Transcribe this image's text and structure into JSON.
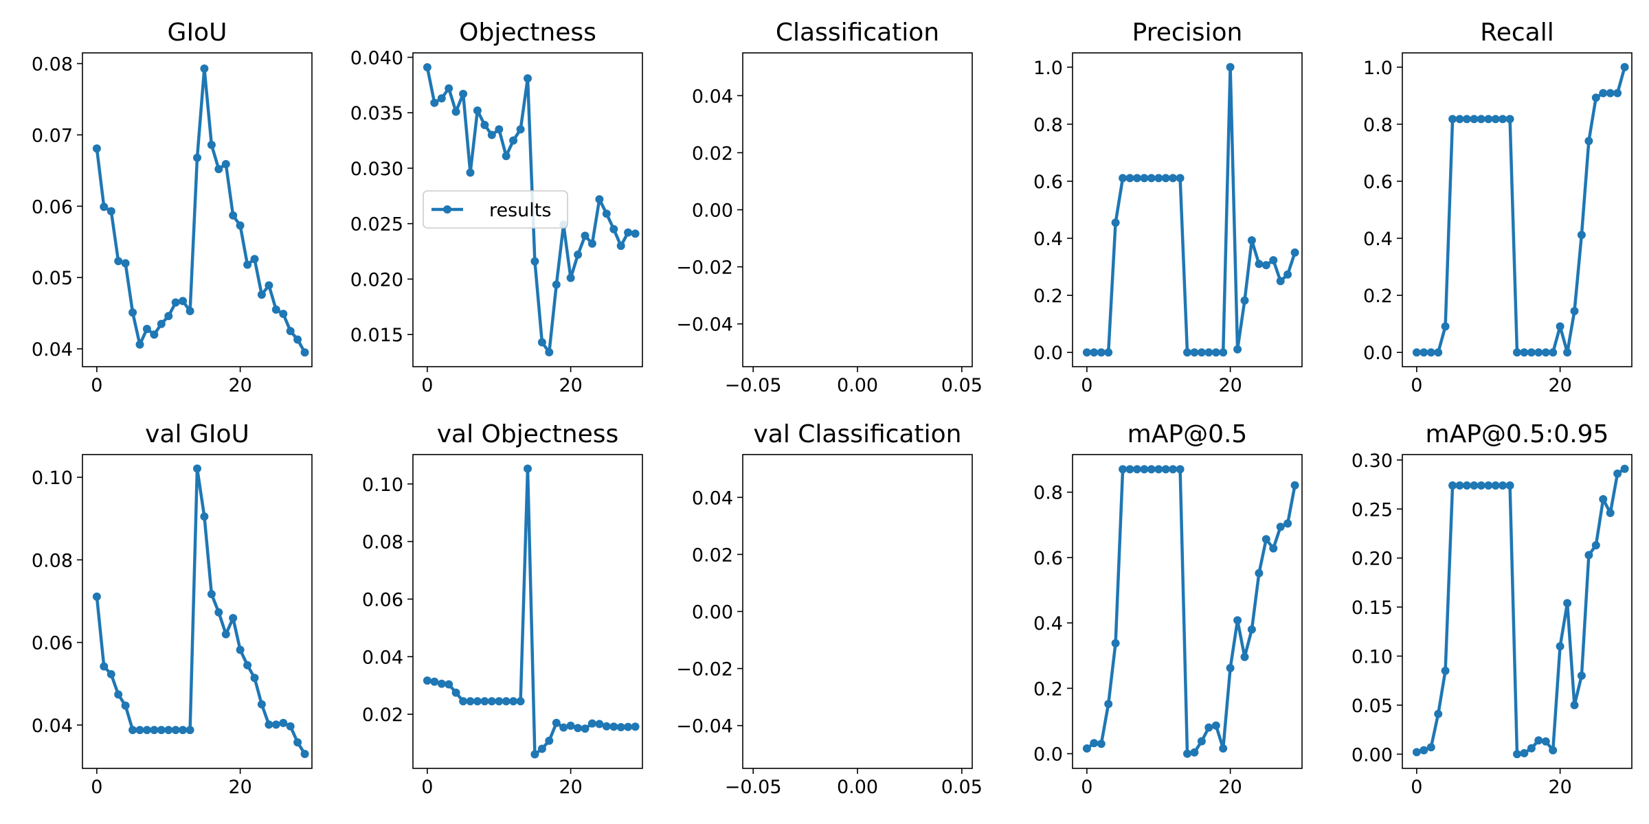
{
  "colors": {
    "series": "#1f77b4",
    "axes": "#000000",
    "background": "#ffffff"
  },
  "chart_data": [
    {
      "type": "line",
      "title": "GIoU",
      "xlim": [
        -2,
        30
      ],
      "ylim": [
        0.0375,
        0.0815
      ],
      "grid": false,
      "xticks": [
        {
          "value": 0,
          "label": "0"
        },
        {
          "value": 20,
          "label": "20"
        }
      ],
      "yticks": [
        {
          "value": 0.04,
          "label": "0.04"
        },
        {
          "value": 0.05,
          "label": "0.05"
        },
        {
          "value": 0.06,
          "label": "0.06"
        },
        {
          "value": 0.07,
          "label": "0.07"
        },
        {
          "value": 0.08,
          "label": "0.08"
        }
      ],
      "series": [
        {
          "x": [
            0,
            1,
            2,
            3,
            4,
            5,
            6,
            7,
            8,
            9,
            10,
            11,
            12,
            13,
            14,
            15,
            16,
            17,
            18,
            19,
            20,
            21,
            22,
            23,
            24,
            25,
            26,
            27,
            28,
            29
          ],
          "y": [
            0.0681,
            0.0599,
            0.0593,
            0.0523,
            0.052,
            0.0451,
            0.0406,
            0.0428,
            0.042,
            0.0435,
            0.0446,
            0.0465,
            0.0467,
            0.0453,
            0.0668,
            0.0793,
            0.0686,
            0.0652,
            0.0659,
            0.0587,
            0.0573,
            0.0518,
            0.0526,
            0.0476,
            0.0489,
            0.0455,
            0.0449,
            0.0425,
            0.0413,
            0.0395
          ]
        }
      ]
    },
    {
      "type": "line",
      "title": "Objectness",
      "xlim": [
        -2,
        30
      ],
      "ylim": [
        0.0121,
        0.0404
      ],
      "grid": false,
      "legend": {
        "entries": [
          "results"
        ],
        "position": "center-left"
      },
      "xticks": [
        {
          "value": 0,
          "label": "0"
        },
        {
          "value": 20,
          "label": "20"
        }
      ],
      "yticks": [
        {
          "value": 0.015,
          "label": "0.015"
        },
        {
          "value": 0.02,
          "label": "0.020"
        },
        {
          "value": 0.025,
          "label": "0.025"
        },
        {
          "value": 0.03,
          "label": "0.030"
        },
        {
          "value": 0.035,
          "label": "0.035"
        },
        {
          "value": 0.04,
          "label": "0.040"
        }
      ],
      "series": [
        {
          "name": "results",
          "x": [
            0,
            1,
            2,
            3,
            4,
            5,
            6,
            7,
            8,
            9,
            10,
            11,
            12,
            13,
            14,
            15,
            16,
            17,
            18,
            19,
            20,
            21,
            22,
            23,
            24,
            25,
            26,
            27,
            28,
            29
          ],
          "y": [
            0.0391,
            0.0359,
            0.0363,
            0.0372,
            0.0351,
            0.0367,
            0.0296,
            0.0352,
            0.0339,
            0.033,
            0.0335,
            0.0311,
            0.0325,
            0.0335,
            0.0381,
            0.0216,
            0.0143,
            0.0134,
            0.0195,
            0.0249,
            0.0201,
            0.0222,
            0.0239,
            0.0232,
            0.0272,
            0.0259,
            0.0245,
            0.023,
            0.0242,
            0.0241
          ]
        }
      ]
    },
    {
      "type": "line",
      "title": "Classification",
      "xlim": [
        -0.055,
        0.055
      ],
      "ylim": [
        -0.055,
        0.055
      ],
      "grid": false,
      "xticks": [
        {
          "value": -0.05,
          "label": "−0.05"
        },
        {
          "value": 0,
          "label": "0.00"
        },
        {
          "value": 0.05,
          "label": "0.05"
        }
      ],
      "yticks": [
        {
          "value": -0.04,
          "label": "−0.04"
        },
        {
          "value": -0.02,
          "label": "−0.02"
        },
        {
          "value": 0,
          "label": "0.00"
        },
        {
          "value": 0.02,
          "label": "0.02"
        },
        {
          "value": 0.04,
          "label": "0.04"
        }
      ],
      "series": [
        {
          "x": [],
          "y": []
        }
      ]
    },
    {
      "type": "line",
      "title": "Precision",
      "xlim": [
        -2,
        30
      ],
      "ylim": [
        -0.05,
        1.05
      ],
      "grid": false,
      "xticks": [
        {
          "value": 0,
          "label": "0"
        },
        {
          "value": 20,
          "label": "20"
        }
      ],
      "yticks": [
        {
          "value": 0,
          "label": "0.0"
        },
        {
          "value": 0.2,
          "label": "0.2"
        },
        {
          "value": 0.4,
          "label": "0.4"
        },
        {
          "value": 0.6,
          "label": "0.6"
        },
        {
          "value": 0.8,
          "label": "0.8"
        },
        {
          "value": 1.0,
          "label": "1.0"
        }
      ],
      "series": [
        {
          "x": [
            0,
            1,
            2,
            3,
            4,
            5,
            6,
            7,
            8,
            9,
            10,
            11,
            12,
            13,
            14,
            15,
            16,
            17,
            18,
            19,
            20,
            21,
            22,
            23,
            24,
            25,
            26,
            27,
            28,
            29
          ],
          "y": [
            0,
            0,
            0,
            0,
            0.455,
            0.611,
            0.611,
            0.611,
            0.611,
            0.611,
            0.611,
            0.611,
            0.611,
            0.611,
            0,
            0,
            0,
            0,
            0,
            0,
            1.0,
            0.011,
            0.182,
            0.393,
            0.31,
            0.306,
            0.323,
            0.25,
            0.273,
            0.35
          ]
        }
      ]
    },
    {
      "type": "line",
      "title": "Recall",
      "xlim": [
        -2,
        30
      ],
      "ylim": [
        -0.05,
        1.05
      ],
      "grid": false,
      "xticks": [
        {
          "value": 0,
          "label": "0"
        },
        {
          "value": 20,
          "label": "20"
        }
      ],
      "yticks": [
        {
          "value": 0,
          "label": "0.0"
        },
        {
          "value": 0.2,
          "label": "0.2"
        },
        {
          "value": 0.4,
          "label": "0.4"
        },
        {
          "value": 0.6,
          "label": "0.6"
        },
        {
          "value": 0.8,
          "label": "0.8"
        },
        {
          "value": 1.0,
          "label": "1.0"
        }
      ],
      "series": [
        {
          "x": [
            0,
            1,
            2,
            3,
            4,
            5,
            6,
            7,
            8,
            9,
            10,
            11,
            12,
            13,
            14,
            15,
            16,
            17,
            18,
            19,
            20,
            21,
            22,
            23,
            24,
            25,
            26,
            27,
            28,
            29
          ],
          "y": [
            0,
            0,
            0,
            0,
            0.091,
            0.818,
            0.818,
            0.818,
            0.818,
            0.818,
            0.818,
            0.818,
            0.818,
            0.818,
            0,
            0,
            0,
            0,
            0,
            0,
            0.091,
            0,
            0.145,
            0.412,
            0.741,
            0.893,
            0.909,
            0.909,
            0.909,
            1.0
          ]
        }
      ]
    },
    {
      "type": "line",
      "title": "val GIoU",
      "xlim": [
        -2,
        30
      ],
      "ylim": [
        0.0295,
        0.1055
      ],
      "grid": false,
      "xticks": [
        {
          "value": 0,
          "label": "0"
        },
        {
          "value": 20,
          "label": "20"
        }
      ],
      "yticks": [
        {
          "value": 0.04,
          "label": "0.04"
        },
        {
          "value": 0.06,
          "label": "0.06"
        },
        {
          "value": 0.08,
          "label": "0.08"
        },
        {
          "value": 0.1,
          "label": "0.10"
        }
      ],
      "series": [
        {
          "x": [
            0,
            1,
            2,
            3,
            4,
            5,
            6,
            7,
            8,
            9,
            10,
            11,
            12,
            13,
            14,
            15,
            16,
            17,
            18,
            19,
            20,
            21,
            22,
            23,
            24,
            25,
            26,
            27,
            28,
            29
          ],
          "y": [
            0.0711,
            0.0542,
            0.0523,
            0.0474,
            0.0447,
            0.0388,
            0.0388,
            0.0388,
            0.0388,
            0.0388,
            0.0388,
            0.0388,
            0.0388,
            0.0388,
            0.1021,
            0.0905,
            0.0717,
            0.0673,
            0.062,
            0.0659,
            0.0582,
            0.0545,
            0.0514,
            0.045,
            0.0401,
            0.0401,
            0.0405,
            0.0397,
            0.0358,
            0.033
          ]
        }
      ]
    },
    {
      "type": "line",
      "title": "val Objectness",
      "xlim": [
        -2,
        30
      ],
      "ylim": [
        0.0012,
        0.1102
      ],
      "grid": false,
      "xticks": [
        {
          "value": 0,
          "label": "0"
        },
        {
          "value": 20,
          "label": "20"
        }
      ],
      "yticks": [
        {
          "value": 0.02,
          "label": "0.02"
        },
        {
          "value": 0.04,
          "label": "0.04"
        },
        {
          "value": 0.06,
          "label": "0.06"
        },
        {
          "value": 0.08,
          "label": "0.08"
        },
        {
          "value": 0.1,
          "label": "0.10"
        }
      ],
      "series": [
        {
          "x": [
            0,
            1,
            2,
            3,
            4,
            5,
            6,
            7,
            8,
            9,
            10,
            11,
            12,
            13,
            14,
            15,
            16,
            17,
            18,
            19,
            20,
            21,
            22,
            23,
            24,
            25,
            26,
            27,
            28,
            29
          ],
          "y": [
            0.0317,
            0.0313,
            0.0306,
            0.0304,
            0.0275,
            0.0245,
            0.0245,
            0.0245,
            0.0245,
            0.0245,
            0.0245,
            0.0245,
            0.0245,
            0.0245,
            0.1053,
            0.0061,
            0.008,
            0.0108,
            0.017,
            0.0154,
            0.016,
            0.0152,
            0.015,
            0.0168,
            0.0166,
            0.0158,
            0.0157,
            0.0155,
            0.0156,
            0.0157
          ]
        }
      ]
    },
    {
      "type": "line",
      "title": "val Classification",
      "xlim": [
        -0.055,
        0.055
      ],
      "ylim": [
        -0.055,
        0.055
      ],
      "grid": false,
      "xticks": [
        {
          "value": -0.05,
          "label": "−0.05"
        },
        {
          "value": 0,
          "label": "0.00"
        },
        {
          "value": 0.05,
          "label": "0.05"
        }
      ],
      "yticks": [
        {
          "value": -0.04,
          "label": "−0.04"
        },
        {
          "value": -0.02,
          "label": "−0.02"
        },
        {
          "value": 0,
          "label": "0.00"
        },
        {
          "value": 0.02,
          "label": "0.02"
        },
        {
          "value": 0.04,
          "label": "0.04"
        }
      ],
      "series": [
        {
          "x": [],
          "y": []
        }
      ]
    },
    {
      "type": "line",
      "title": "mAP@0.5",
      "xlim": [
        -2,
        30
      ],
      "ylim": [
        -0.045,
        0.915
      ],
      "grid": false,
      "xticks": [
        {
          "value": 0,
          "label": "0"
        },
        {
          "value": 20,
          "label": "20"
        }
      ],
      "yticks": [
        {
          "value": 0,
          "label": "0.0"
        },
        {
          "value": 0.2,
          "label": "0.2"
        },
        {
          "value": 0.4,
          "label": "0.4"
        },
        {
          "value": 0.6,
          "label": "0.6"
        },
        {
          "value": 0.8,
          "label": "0.8"
        }
      ],
      "series": [
        {
          "x": [
            0,
            1,
            2,
            3,
            4,
            5,
            6,
            7,
            8,
            9,
            10,
            11,
            12,
            13,
            14,
            15,
            16,
            17,
            18,
            19,
            20,
            21,
            22,
            23,
            24,
            25,
            26,
            27,
            28,
            29
          ],
          "y": [
            0.016,
            0.032,
            0.03,
            0.152,
            0.338,
            0.87,
            0.87,
            0.87,
            0.87,
            0.87,
            0.87,
            0.87,
            0.87,
            0.87,
            0,
            0.004,
            0.038,
            0.08,
            0.086,
            0.016,
            0.262,
            0.408,
            0.296,
            0.38,
            0.552,
            0.656,
            0.628,
            0.694,
            0.704,
            0.821
          ]
        }
      ]
    },
    {
      "type": "line",
      "title": "mAP@0.5:0.95",
      "xlim": [
        -2,
        30
      ],
      "ylim": [
        -0.0145,
        0.3055
      ],
      "grid": false,
      "xticks": [
        {
          "value": 0,
          "label": "0"
        },
        {
          "value": 20,
          "label": "20"
        }
      ],
      "yticks": [
        {
          "value": 0,
          "label": "0.00"
        },
        {
          "value": 0.05,
          "label": "0.05"
        },
        {
          "value": 0.1,
          "label": "0.10"
        },
        {
          "value": 0.15,
          "label": "0.15"
        },
        {
          "value": 0.2,
          "label": "0.20"
        },
        {
          "value": 0.25,
          "label": "0.25"
        },
        {
          "value": 0.3,
          "label": "0.30"
        }
      ],
      "series": [
        {
          "x": [
            0,
            1,
            2,
            3,
            4,
            5,
            6,
            7,
            8,
            9,
            10,
            11,
            12,
            13,
            14,
            15,
            16,
            17,
            18,
            19,
            20,
            21,
            22,
            23,
            24,
            25,
            26,
            27,
            28,
            29
          ],
          "y": [
            0.002,
            0.004,
            0.007,
            0.041,
            0.085,
            0.274,
            0.274,
            0.274,
            0.274,
            0.274,
            0.274,
            0.274,
            0.274,
            0.274,
            0,
            0.001,
            0.006,
            0.014,
            0.013,
            0.004,
            0.11,
            0.154,
            0.05,
            0.08,
            0.203,
            0.213,
            0.26,
            0.246,
            0.286,
            0.291
          ]
        }
      ]
    }
  ]
}
